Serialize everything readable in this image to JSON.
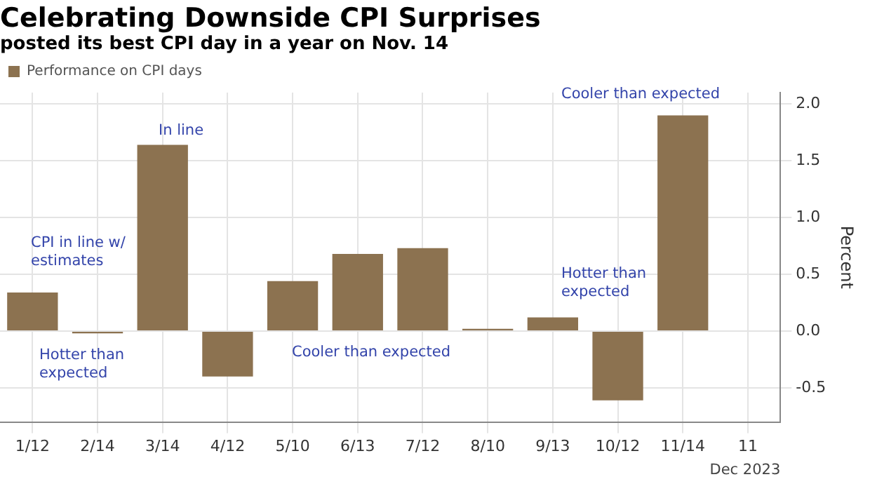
{
  "chart_data": {
    "type": "bar",
    "title": "Celebrating Downside CPI Surprises",
    "subtitle": "posted its best CPI day in a year on Nov. 14",
    "ylabel": "Percent",
    "categories": [
      "1/12",
      "2/14",
      "3/14",
      "4/12",
      "5/10",
      "6/13",
      "7/12",
      "8/10",
      "9/13",
      "10/12",
      "11/14",
      "11"
    ],
    "series": [
      {
        "name": "Performance on CPI days",
        "color": "#8c7250",
        "values": [
          0.34,
          -0.02,
          1.64,
          -0.4,
          0.44,
          0.68,
          0.73,
          0.02,
          0.12,
          -0.61,
          1.9,
          null
        ]
      }
    ],
    "ylim": [
      -0.8,
      2.1
    ],
    "yticks": [
      {
        "value": -0.5,
        "label": "-0.5"
      },
      {
        "value": 0,
        "label": "0.0"
      },
      {
        "value": 0.5,
        "label": "0.5"
      },
      {
        "value": 1,
        "label": "1.0"
      },
      {
        "value": 1.5,
        "label": "1.5"
      },
      {
        "value": 2,
        "label": "2.0"
      }
    ],
    "grid": true,
    "legend": "top left",
    "annotations": [
      "CPI in line w/ estimates",
      "Hotter than expected",
      "In line",
      "Cooler than expected",
      "Hotter than expected",
      "Cooler than expected",
      "Dec 2023"
    ]
  }
}
